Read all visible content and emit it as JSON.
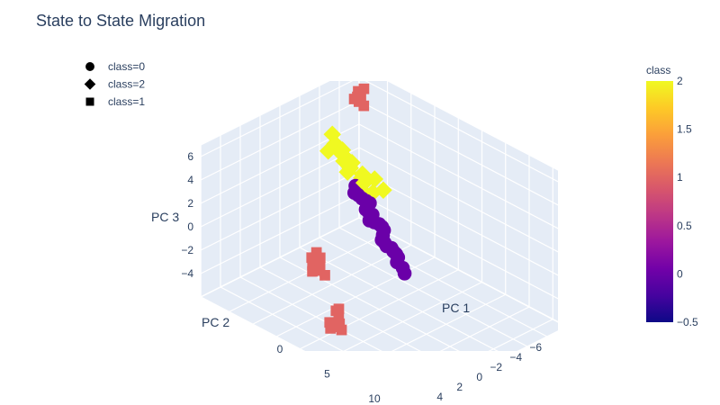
{
  "chart_data": {
    "type": "scatter3d",
    "title": "State to State Migration",
    "axes": {
      "x": {
        "label": "PC 1",
        "ticks": [
          "0",
          "5",
          "10"
        ]
      },
      "y": {
        "label": "PC 2",
        "ticks": [
          "−6",
          "−4",
          "−2",
          "0",
          "2",
          "4"
        ]
      },
      "z": {
        "label": "PC 3",
        "ticks": [
          "−4",
          "−2",
          "0",
          "2",
          "4",
          "6"
        ]
      }
    },
    "legend": [
      {
        "label": "class=0",
        "symbol": "circle"
      },
      {
        "label": "class=2",
        "symbol": "diamond"
      },
      {
        "label": "class=1",
        "symbol": "square"
      }
    ],
    "colorbar": {
      "title": "class",
      "range": [
        -0.5,
        2
      ],
      "ticks": [
        "2",
        "1.5",
        "1",
        "0.5",
        "0",
        "−0.5"
      ],
      "colorscale": [
        "#0d0887",
        "#46039f",
        "#7201a8",
        "#9c179e",
        "#bd3786",
        "#d8576b",
        "#ed7953",
        "#fb9f3a",
        "#fdca26",
        "#f0f921"
      ]
    },
    "series": [
      {
        "name": "class=0",
        "class": 0,
        "symbol": "circle",
        "color": "#6a00a8",
        "x": [
          0.0,
          0.5,
          1.0,
          1.4,
          1.8,
          2.2,
          2.6,
          3.0,
          3.4,
          3.8,
          4.2,
          4.6,
          5.0,
          5.3,
          0.3,
          1.2,
          2.0,
          2.8,
          3.6,
          4.4,
          0.8,
          1.6,
          2.4,
          3.2,
          4.0
        ],
        "y": [
          0.0,
          0.2,
          -0.1,
          0.3,
          0.0,
          0.2,
          -0.2,
          0.1,
          0.3,
          0.0,
          -0.1,
          0.2,
          0.0,
          0.1,
          0.4,
          -0.3,
          0.5,
          -0.2,
          0.3,
          -0.1,
          0.1,
          0.2,
          -0.1,
          0.4,
          0.0
        ],
        "z": [
          3.5,
          3.0,
          2.6,
          2.2,
          1.8,
          1.4,
          1.0,
          0.6,
          0.2,
          -0.2,
          -0.6,
          -1.0,
          -1.4,
          -1.7,
          3.2,
          2.4,
          1.6,
          0.8,
          0.0,
          -0.8,
          2.8,
          2.0,
          1.2,
          0.4,
          -0.4
        ]
      },
      {
        "name": "class=2",
        "class": 2,
        "symbol": "diamond",
        "color": "#f0f921",
        "x": [
          -3.5,
          -3.0,
          -2.5,
          -2.0,
          -1.5,
          -1.0,
          -0.5,
          0.0,
          0.5,
          1.0,
          -2.8,
          -2.2,
          -1.6,
          -1.2,
          -0.8,
          -0.2,
          0.3,
          1.5,
          2.0,
          -3.2
        ],
        "y": [
          -1.0,
          -0.8,
          -1.2,
          -0.5,
          -0.9,
          -0.6,
          -1.1,
          -0.7,
          -0.4,
          -0.8,
          -1.5,
          -1.3,
          -0.2,
          -1.4,
          -0.3,
          -1.0,
          -0.6,
          -0.5,
          -0.9,
          -0.3
        ],
        "z": [
          6.0,
          5.5,
          4.5,
          5.2,
          4.0,
          4.8,
          3.5,
          4.2,
          3.8,
          3.0,
          3.8,
          3.2,
          5.8,
          2.5,
          5.0,
          2.0,
          2.8,
          4.5,
          3.6,
          5.0
        ]
      },
      {
        "name": "class=1",
        "class": 1,
        "symbol": "square",
        "color": "#e16462",
        "x": [
          -6.0,
          -5.8,
          -5.5,
          -5.3,
          -5.6,
          -6.2,
          -5.4,
          -5.9,
          4.0,
          4.3,
          4.6,
          3.8,
          4.1,
          4.5,
          -1.5,
          -1.2,
          -0.8,
          -1.0,
          -0.5,
          -0.2,
          2.5,
          2.8,
          -0.6,
          -1.3
        ],
        "y": [
          -6.0,
          -5.8,
          -5.6,
          -5.9,
          -6.2,
          -6.1,
          -5.7,
          -5.5,
          5.5,
          5.8,
          6.0,
          5.6,
          6.2,
          5.7,
          3.0,
          3.2,
          2.8,
          3.4,
          3.1,
          2.9,
          5.0,
          5.2,
          3.3,
          2.7
        ],
        "z": [
          6.5,
          6.2,
          6.0,
          5.6,
          6.8,
          5.9,
          6.4,
          6.1,
          -3.0,
          -3.4,
          -3.8,
          -3.2,
          -4.2,
          -4.5,
          -2.0,
          -2.4,
          -1.8,
          -2.8,
          -2.2,
          -3.0,
          -5.0,
          -5.3,
          -2.6,
          -1.6
        ]
      }
    ]
  }
}
